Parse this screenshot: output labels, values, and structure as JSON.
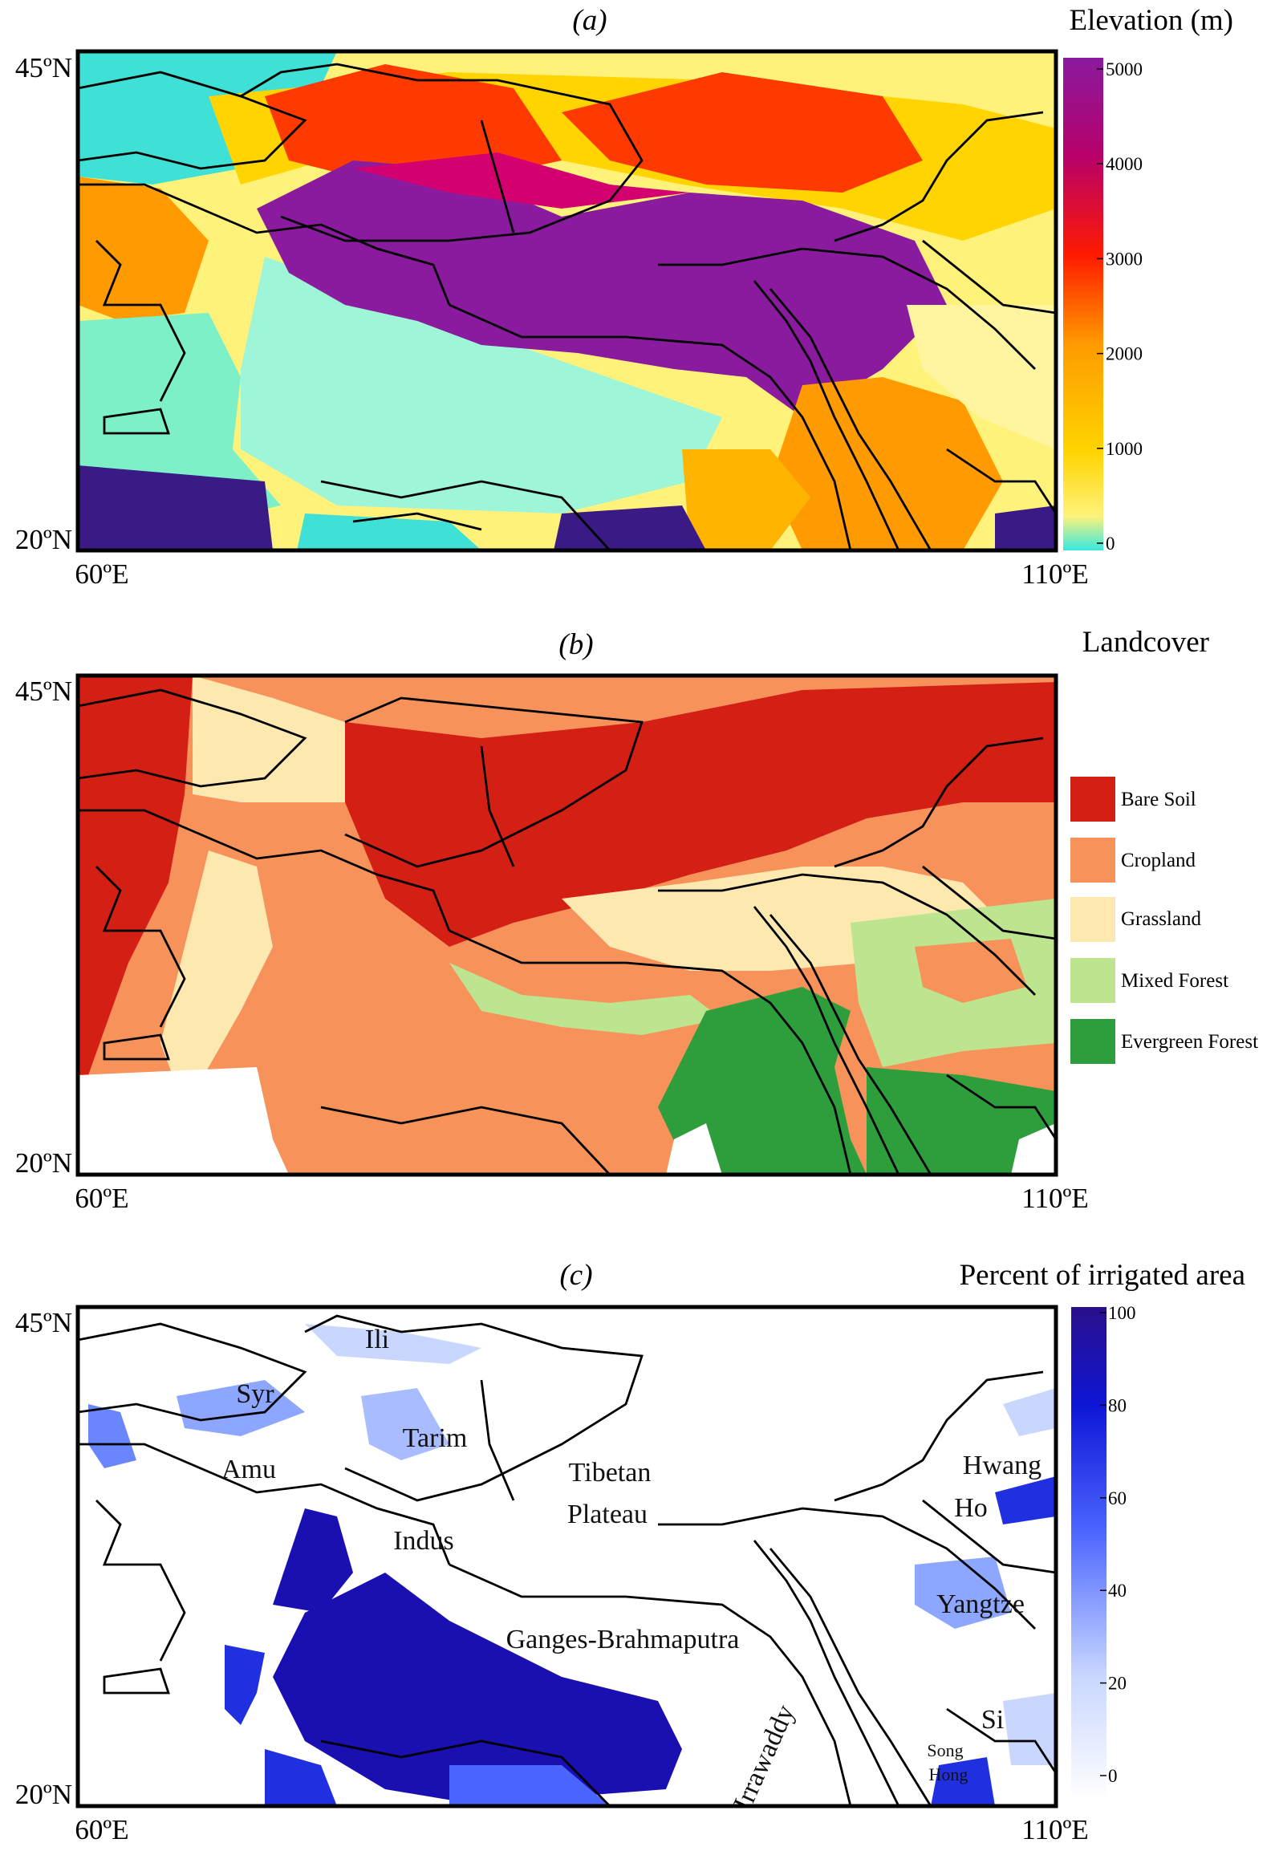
{
  "panels": [
    {
      "label": "(a)",
      "title": "Elevation (m)",
      "lat_top": "45ºN",
      "lat_bottom": "20ºN",
      "lon_left": "60ºE",
      "lon_right": "110ºE",
      "colorbar": {
        "ticks": [
          "5000",
          "4000",
          "3000",
          "2000",
          "1000",
          "0"
        ],
        "range": [
          0,
          5000
        ],
        "colors": [
          "#38e8e0",
          "#fff27a",
          "#ffd400",
          "#ff9a00",
          "#ff1a00",
          "#b8006a",
          "#8a1a9e"
        ]
      }
    },
    {
      "label": "(b)",
      "title": "Landcover",
      "lat_top": "45ºN",
      "lat_bottom": "20ºN",
      "lon_left": "60ºE",
      "lon_right": "110ºE",
      "legend": [
        {
          "label": "Bare Soil",
          "color": "#d41f15"
        },
        {
          "label": "Cropland",
          "color": "#f7935a"
        },
        {
          "label": "Grassland",
          "color": "#fde9b0"
        },
        {
          "label": "Mixed Forest",
          "color": "#bde58f"
        },
        {
          "label": "Evergreen Forest",
          "color": "#2e9e3d"
        }
      ]
    },
    {
      "label": "(c)",
      "title": "Percent of irrigated area",
      "lat_top": "45ºN",
      "lat_bottom": "20ºN",
      "lon_left": "60ºE",
      "lon_right": "110ºE",
      "colorbar": {
        "ticks": [
          "100",
          "80",
          "60",
          "40",
          "20",
          "0"
        ],
        "range": [
          0,
          100
        ],
        "colors": [
          "#ffffff",
          "#c9d7ff",
          "#4a64ff",
          "#0e16d6",
          "#2a0f8a"
        ]
      },
      "basins": {
        "ili": "Ili",
        "syr": "Syr",
        "tarim": "Tarim",
        "amu": "Amu",
        "tibetan1": "Tibetan",
        "tibetan2": "Plateau",
        "hwang1": "Hwang",
        "hwang2": "Ho",
        "indus": "Indus",
        "yangtze": "Yangtze",
        "ganges": "Ganges-Brahmaputra",
        "irrawaddy": "Irrawaddy",
        "si": "Si",
        "song1": "Song",
        "song2": "Hong"
      }
    }
  ]
}
